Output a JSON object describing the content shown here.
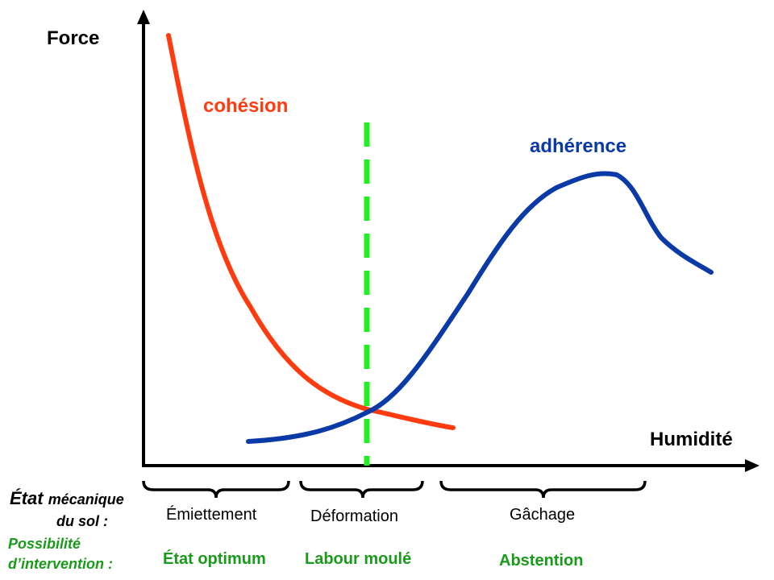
{
  "axes": {
    "y_title": "Force",
    "x_title": "Humidité"
  },
  "curves": {
    "cohesion": {
      "label": "cohésion",
      "color": "#ff3b10"
    },
    "adherence": {
      "label": "adhérence",
      "color": "#0a3aa8"
    }
  },
  "marker": {
    "color": "#22ee22",
    "style": "dashed"
  },
  "row_labels": {
    "state_main": "État",
    "state_small": "mécanique",
    "state_line2": "du sol :",
    "intervention_line1": "Possibilité",
    "intervention_line2": "d’intervention :",
    "intervention_color": "#1a9a1a"
  },
  "phases": [
    {
      "state": "Émiettement",
      "action": "État optimum"
    },
    {
      "state": "Déformation",
      "action": "Labour moulé"
    },
    {
      "state": "Gâchage",
      "action": "Abstention"
    }
  ]
}
